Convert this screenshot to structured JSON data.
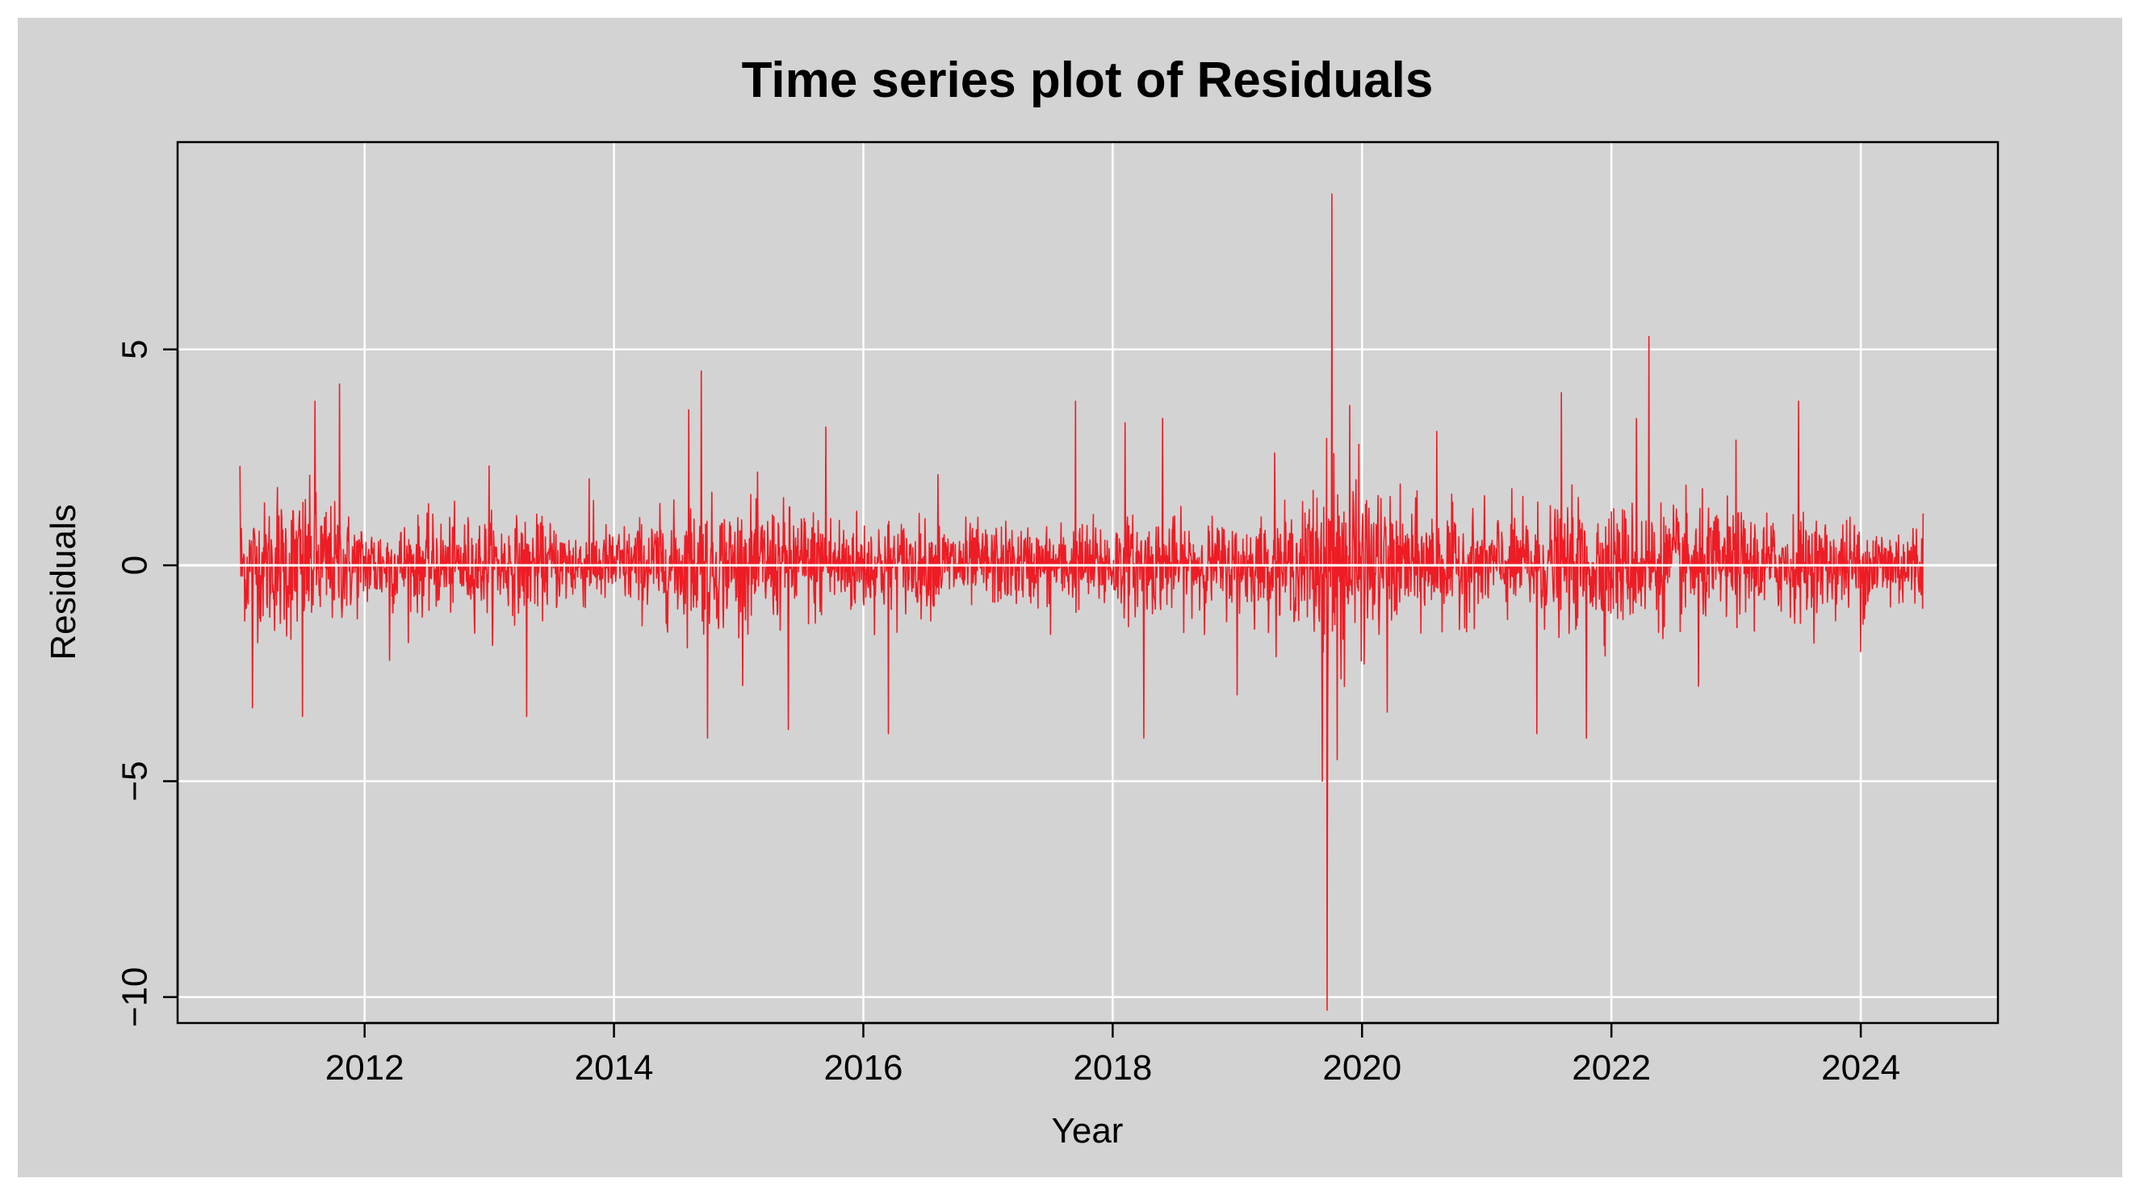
{
  "chart_data": {
    "type": "line",
    "title": "Time series plot of Residuals",
    "xlabel": "Year",
    "ylabel": "Residuals",
    "xlim": [
      2010.5,
      2025.1
    ],
    "ylim": [
      -10.6,
      9.8
    ],
    "x_ticks": [
      2012,
      2014,
      2016,
      2018,
      2020,
      2022,
      2024
    ],
    "x_tick_labels": [
      "2012",
      "2014",
      "2016",
      "2018",
      "2020",
      "2022",
      "2024"
    ],
    "y_ticks": [
      5,
      0,
      -5,
      -10
    ],
    "y_tick_labels": [
      "5",
      "0",
      "−5",
      "−10"
    ],
    "grid": true,
    "zero_line": true,
    "series": [
      {
        "color": "#ee1c24",
        "x_start": 2011.0,
        "x_end": 2024.5,
        "x": [
          2011.0,
          2011.05,
          2011.1,
          2011.3,
          2011.5,
          2011.6,
          2011.8,
          2012.2,
          2013.0,
          2013.3,
          2013.8,
          2014.6,
          2014.7,
          2014.75,
          2015.4,
          2015.7,
          2016.2,
          2016.6,
          2017.5,
          2017.7,
          2018.1,
          2018.25,
          2018.4,
          2019.0,
          2019.3,
          2019.68,
          2019.72,
          2019.76,
          2019.8,
          2019.9,
          2020.2,
          2020.6,
          2021.4,
          2021.6,
          2021.8,
          2022.2,
          2022.3,
          2022.7,
          2023.0,
          2023.5,
          2024.0,
          2024.5
        ],
        "values": [
          2.3,
          -1.0,
          -3.3,
          1.8,
          -3.5,
          3.8,
          4.2,
          -2.2,
          2.3,
          -3.5,
          2.0,
          3.6,
          4.5,
          -4.0,
          -3.8,
          3.2,
          -3.9,
          2.1,
          -1.6,
          3.8,
          3.3,
          -4.0,
          3.4,
          -3.0,
          2.6,
          -5.0,
          -10.3,
          8.6,
          -4.5,
          3.7,
          -3.4,
          3.1,
          -3.9,
          4.0,
          -4.0,
          3.4,
          5.3,
          -2.8,
          2.9,
          3.8,
          -2.0,
          1.2
        ],
        "envelope": {
          "x": [
            2011.0,
            2011.5,
            2012.0,
            2013.0,
            2014.0,
            2014.7,
            2015.5,
            2016.5,
            2017.5,
            2018.0,
            2019.0,
            2019.5,
            2019.75,
            2020.2,
            2021.0,
            2021.7,
            2022.5,
            2023.5,
            2024.5
          ],
          "half_range": [
            1.1,
            1.6,
            0.9,
            1.0,
            0.8,
            1.3,
            1.2,
            0.9,
            0.8,
            1.0,
            0.9,
            1.1,
            2.4,
            1.3,
            1.0,
            1.3,
            1.2,
            1.0,
            0.9
          ]
        },
        "n_points": 3500
      }
    ]
  }
}
